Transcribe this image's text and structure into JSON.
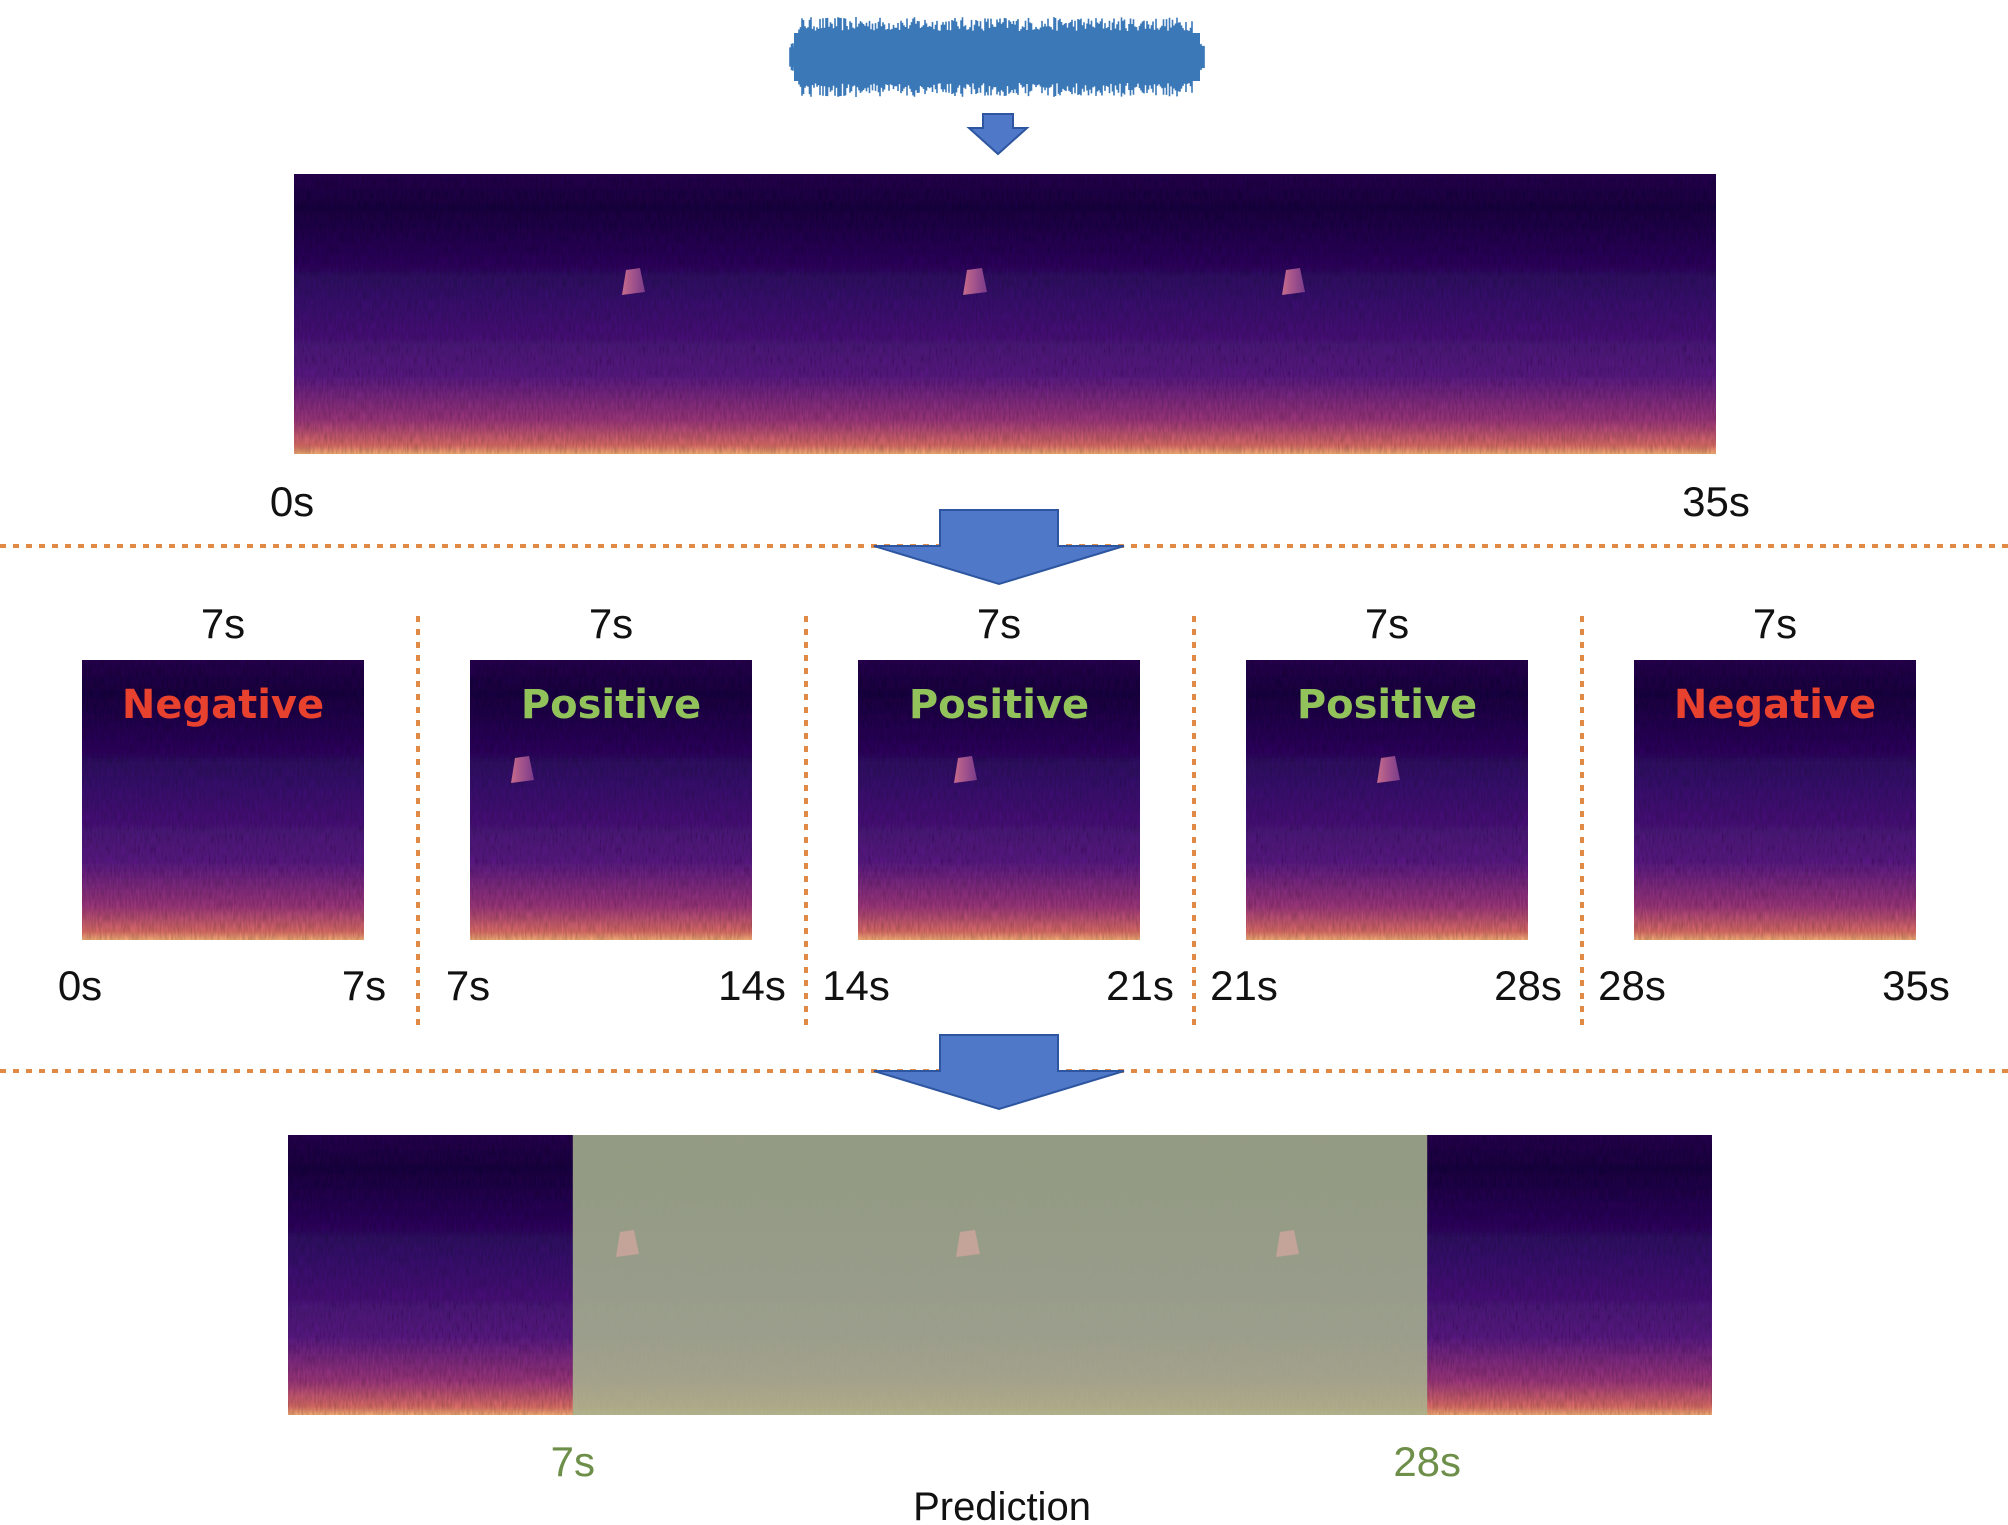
{
  "colors": {
    "waveform": "#3a78b8",
    "arrow_fill": "#4f78c9",
    "arrow_stroke": "#2e56a0",
    "divider": "#e08a45",
    "negative_text": "#e8412d",
    "positive_text": "#92c35a",
    "highlight_text": "#6e8f4a",
    "highlight_overlay": "#a8b48f"
  },
  "full_spectrogram": {
    "start_label": "0s",
    "end_label": "35s"
  },
  "chunks": [
    {
      "duration_label": "7s",
      "class_label": "Negative",
      "class": "negative",
      "start_label": "0s",
      "end_label": "7s",
      "has_call": false
    },
    {
      "duration_label": "7s",
      "class_label": "Positive",
      "class": "positive",
      "start_label": "7s",
      "end_label": "14s",
      "has_call": true
    },
    {
      "duration_label": "7s",
      "class_label": "Positive",
      "class": "positive",
      "start_label": "14s",
      "end_label": "21s",
      "has_call": true
    },
    {
      "duration_label": "7s",
      "class_label": "Positive",
      "class": "positive",
      "start_label": "21s",
      "end_label": "28s",
      "has_call": true
    },
    {
      "duration_label": "7s",
      "class_label": "Negative",
      "class": "negative",
      "start_label": "28s",
      "end_label": "35s",
      "has_call": false
    }
  ],
  "prediction": {
    "start_label": "7s",
    "end_label": "28s",
    "caption": "Prediction",
    "highlight_start_s": 7,
    "highlight_end_s": 28,
    "total_s": 35
  }
}
